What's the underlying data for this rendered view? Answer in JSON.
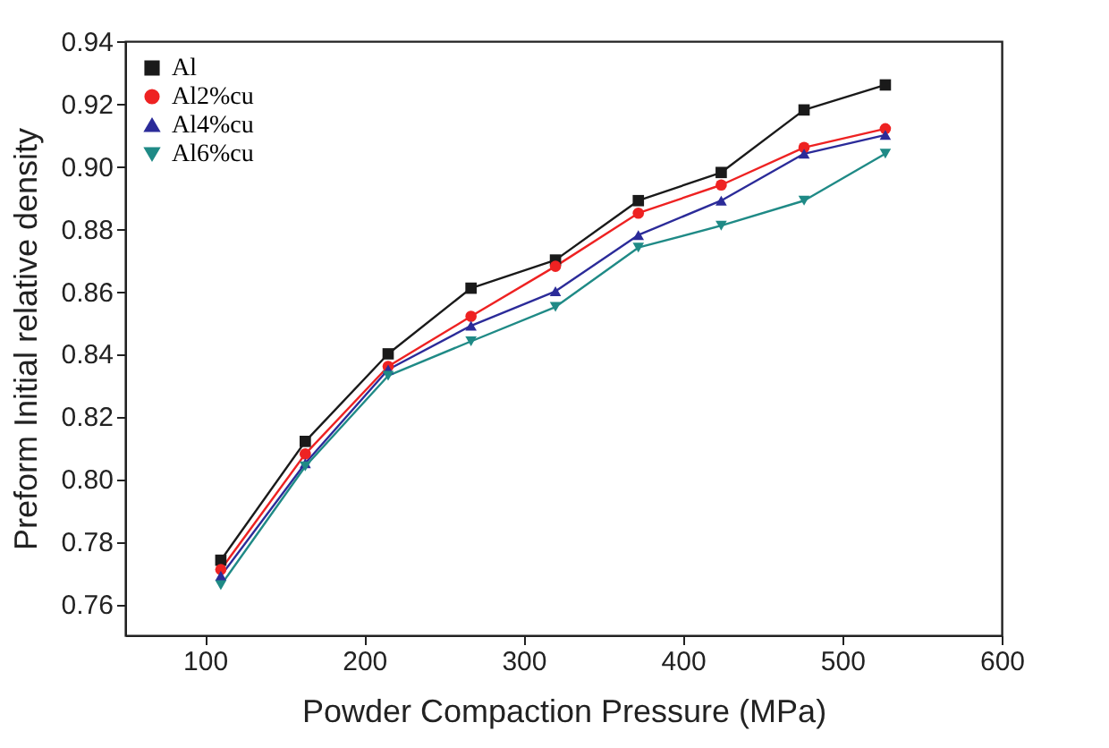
{
  "chart_data": {
    "type": "line",
    "xlabel": "Powder Compaction Pressure (MPa)",
    "ylabel": "Preform Initial relative density",
    "x": [
      110,
      163,
      215,
      267,
      320,
      372,
      424,
      476,
      527
    ],
    "series": [
      {
        "name": "Al",
        "color": "#1a1a1a",
        "marker": "square",
        "values": [
          0.774,
          0.812,
          0.84,
          0.861,
          0.87,
          0.889,
          0.898,
          0.918,
          0.926
        ]
      },
      {
        "name": "Al2%cu",
        "color": "#ee2222",
        "marker": "circle",
        "values": [
          0.771,
          0.808,
          0.836,
          0.852,
          0.868,
          0.885,
          0.894,
          0.906,
          0.912
        ]
      },
      {
        "name": "Al4%cu",
        "color": "#2b2b99",
        "marker": "triangle",
        "values": [
          0.769,
          0.805,
          0.835,
          0.849,
          0.86,
          0.878,
          0.889,
          0.904,
          0.91
        ]
      },
      {
        "name": "Al6%cu",
        "color": "#1f8a86",
        "marker": "triangle-down",
        "values": [
          0.766,
          0.804,
          0.833,
          0.844,
          0.855,
          0.874,
          0.881,
          0.889,
          0.904
        ]
      }
    ],
    "xlim": [
      50,
      600
    ],
    "xticks": [
      100,
      200,
      300,
      400,
      500,
      600
    ],
    "ylim": [
      0.75,
      0.94
    ],
    "yticks": [
      0.76,
      0.78,
      {
        "value": 0.8,
        "label": "0.80"
      },
      0.82,
      0.84,
      0.86,
      0.88,
      {
        "value": 0.9,
        "label": "0.90"
      },
      0.92,
      0.94
    ],
    "grid": false,
    "legend": "top left"
  }
}
